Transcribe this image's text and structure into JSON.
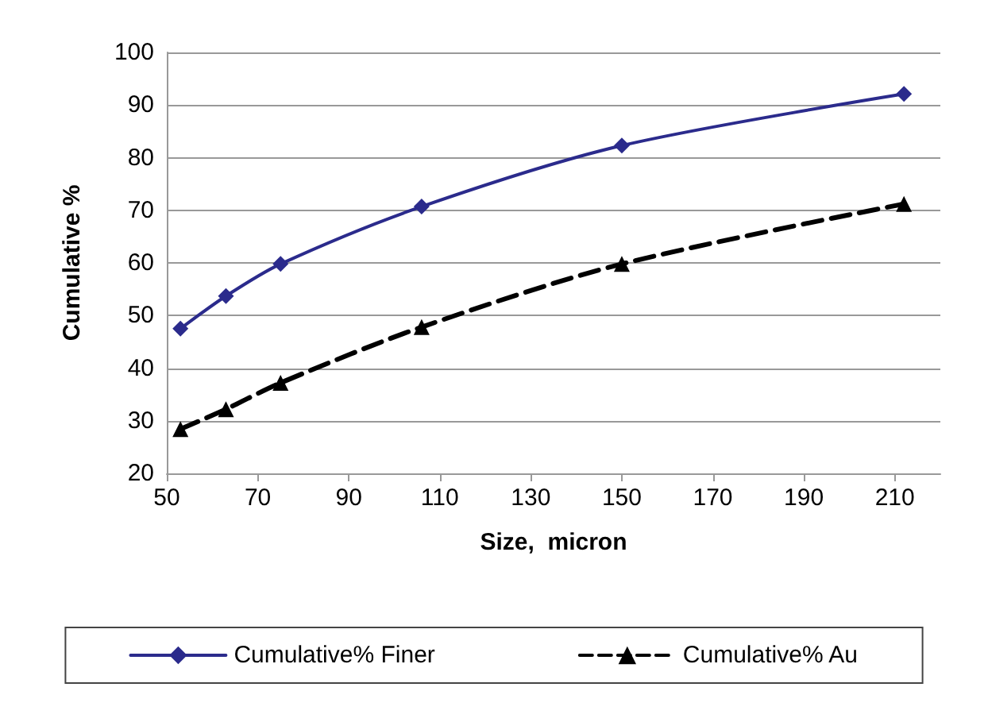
{
  "chart_data": {
    "type": "line",
    "xlabel": "Size,  micron",
    "ylabel": "Cumulative %",
    "xlim": [
      50,
      220
    ],
    "xticks": [
      50,
      70,
      90,
      110,
      130,
      150,
      170,
      190,
      210
    ],
    "ylim": [
      20,
      100
    ],
    "yticks": [
      20,
      30,
      40,
      50,
      60,
      70,
      80,
      90,
      100
    ],
    "grid": "y",
    "legend": "bottom",
    "x": [
      53,
      63,
      75,
      106,
      150,
      212
    ],
    "series": [
      {
        "name": "Cumulative% Finer",
        "color": "#2b2b8c",
        "marker": "diamond",
        "line_style": "solid",
        "values": [
          47.5,
          53.7,
          59.8,
          70.7,
          82.3,
          92.1
        ]
      },
      {
        "name": "Cumulative% Au",
        "color": "#000000",
        "marker": "triangle",
        "line_style": "dashed",
        "values": [
          28.4,
          32.2,
          37.2,
          47.8,
          59.8,
          71.2
        ]
      }
    ]
  }
}
